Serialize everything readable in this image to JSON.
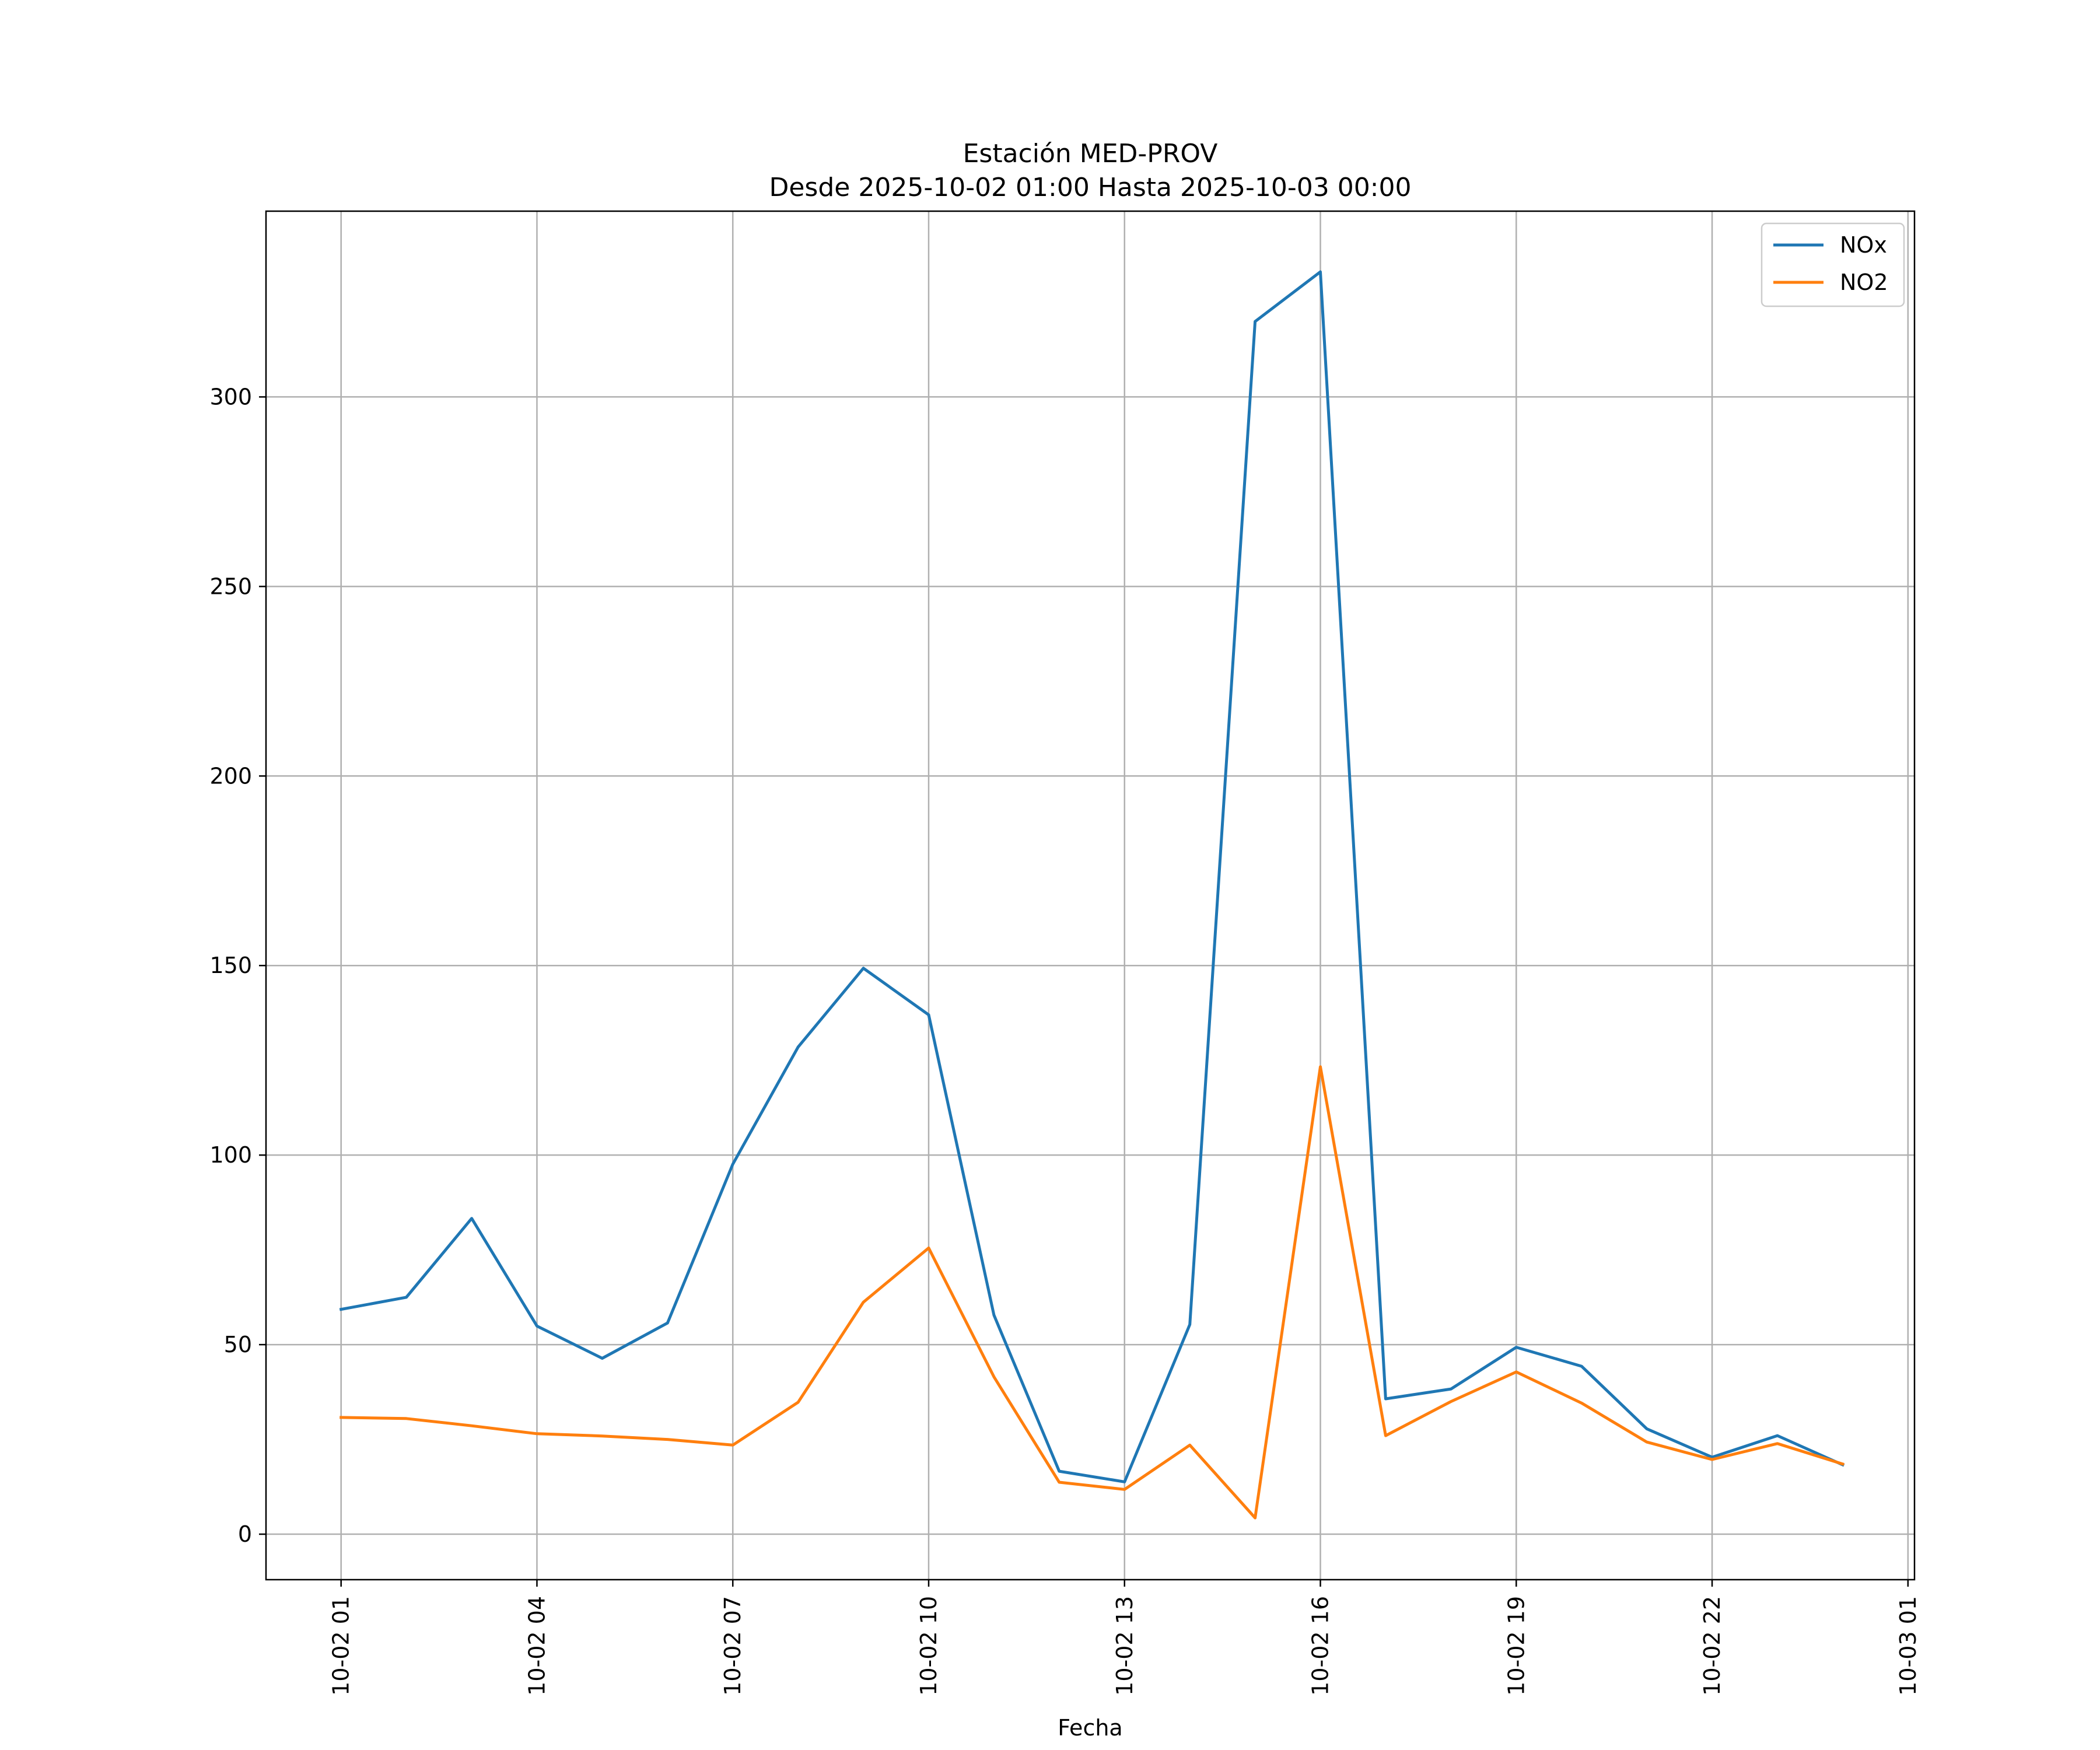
{
  "chart_data": {
    "type": "line",
    "title": "Estación MED-PROV",
    "subtitle": "Desde 2025-10-02 01:00 Hasta 2025-10-03 00:00",
    "xlabel": "Fecha",
    "ylabel": "",
    "x_hours": [
      1,
      2,
      3,
      4,
      5,
      6,
      7,
      8,
      9,
      10,
      11,
      12,
      13,
      14,
      15,
      16,
      17,
      18,
      19,
      20,
      21,
      22,
      23,
      24
    ],
    "xlim": [
      -0.15,
      25.1
    ],
    "ylim": [
      -12,
      349
    ],
    "x_ticks": [
      {
        "hour": 1,
        "label": "10-02 01"
      },
      {
        "hour": 4,
        "label": "10-02 04"
      },
      {
        "hour": 7,
        "label": "10-02 07"
      },
      {
        "hour": 10,
        "label": "10-02 10"
      },
      {
        "hour": 13,
        "label": "10-02 13"
      },
      {
        "hour": 16,
        "label": "10-02 16"
      },
      {
        "hour": 19,
        "label": "10-02 19"
      },
      {
        "hour": 22,
        "label": "10-02 22"
      },
      {
        "hour": 25,
        "label": "10-03 01"
      }
    ],
    "y_ticks": [
      {
        "value": 0,
        "label": "0"
      },
      {
        "value": 50,
        "label": "50"
      },
      {
        "value": 100,
        "label": "100"
      },
      {
        "value": 150,
        "label": "150"
      },
      {
        "value": 200,
        "label": "200"
      },
      {
        "value": 250,
        "label": "250"
      },
      {
        "value": 300,
        "label": "300"
      }
    ],
    "grid": true,
    "legend_position": "top-right",
    "series": [
      {
        "name": "NOx",
        "color": "#1f77b4",
        "values": [
          59.3,
          62.5,
          83.3,
          54.9,
          46.4,
          55.7,
          97.6,
          128.5,
          149.3,
          137.0,
          57.8,
          16.6,
          13.8,
          55.3,
          319.9,
          333.0,
          35.7,
          38.3,
          49.3,
          44.3,
          27.8,
          20.3,
          26.0,
          18.3
        ]
      },
      {
        "name": "NO2",
        "color": "#ff7f0e",
        "values": [
          30.8,
          30.5,
          28.6,
          26.5,
          25.9,
          25.0,
          23.5,
          34.8,
          61.2,
          75.5,
          41.5,
          13.7,
          11.8,
          23.5,
          4.3,
          123.3,
          26.0,
          35.0,
          42.8,
          34.6,
          24.3,
          19.7,
          23.9,
          18.5
        ]
      }
    ]
  }
}
